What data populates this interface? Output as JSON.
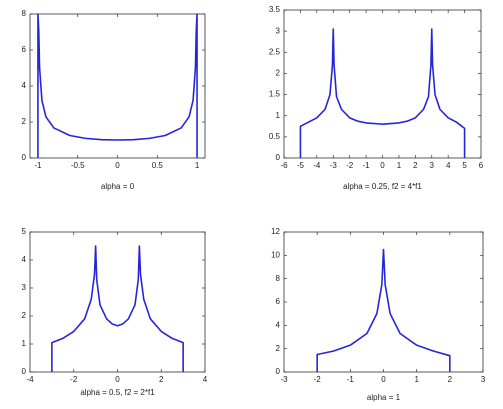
{
  "chart_data": [
    {
      "type": "line",
      "xlabel": "alpha = 0",
      "color": "#2626d9",
      "x": [
        -1,
        -1,
        -0.99,
        -0.98,
        -0.95,
        -0.9,
        -0.8,
        -0.6,
        -0.4,
        -0.2,
        0,
        0.2,
        0.4,
        0.6,
        0.8,
        0.9,
        0.95,
        0.98,
        0.99,
        1,
        1
      ],
      "values": [
        0,
        8,
        7.1,
        5.03,
        3.2,
        2.29,
        1.67,
        1.25,
        1.09,
        1.02,
        1,
        1.02,
        1.09,
        1.25,
        1.67,
        2.29,
        3.2,
        5.03,
        7.1,
        8,
        0
      ],
      "xlim": [
        -1.1,
        1.1
      ],
      "xticks": [
        -1,
        -0.5,
        0,
        0.5,
        1
      ],
      "ylim": [
        0,
        8
      ],
      "yticks": [
        0,
        2,
        4,
        6,
        8
      ]
    },
    {
      "type": "line",
      "xlabel": "alpha = 0.25, f2 = 4*f1",
      "color": "#2626d9",
      "x": [
        -5,
        -5,
        -4.5,
        -4,
        -3.5,
        -3.2,
        -3.05,
        -3,
        -2.95,
        -2.8,
        -2.5,
        -2,
        -1.5,
        -1,
        0,
        1,
        1.5,
        2,
        2.5,
        2.8,
        2.95,
        3,
        3.05,
        3.2,
        3.5,
        4,
        4.5,
        5,
        5
      ],
      "values": [
        0,
        0.75,
        0.85,
        0.95,
        1.15,
        1.5,
        2.2,
        3.05,
        2.2,
        1.45,
        1.15,
        0.95,
        0.87,
        0.83,
        0.8,
        0.83,
        0.87,
        0.95,
        1.15,
        1.45,
        2.2,
        3.05,
        2.2,
        1.5,
        1.15,
        0.95,
        0.85,
        0.7,
        0
      ],
      "xlim": [
        -6,
        6
      ],
      "xticks": [
        -6,
        -5,
        -4,
        -3,
        -2,
        -1,
        0,
        1,
        2,
        3,
        4,
        5,
        6
      ],
      "ylim": [
        0,
        3.5
      ],
      "yticks": [
        0,
        0.5,
        1,
        1.5,
        2,
        2.5,
        3,
        3.5
      ]
    },
    {
      "type": "line",
      "xlabel": "alpha = 0.5, f2 = 2*f1",
      "color": "#2626d9",
      "x": [
        -3,
        -3,
        -2.5,
        -2,
        -1.5,
        -1.2,
        -1.05,
        -1,
        -0.95,
        -0.8,
        -0.5,
        -0.25,
        0,
        0.25,
        0.5,
        0.8,
        0.95,
        1,
        1.05,
        1.2,
        1.5,
        2,
        2.5,
        3,
        3
      ],
      "values": [
        0,
        1.05,
        1.2,
        1.45,
        1.9,
        2.6,
        3.5,
        4.5,
        3.3,
        2.4,
        1.9,
        1.72,
        1.65,
        1.72,
        1.9,
        2.4,
        3.3,
        4.5,
        3.5,
        2.6,
        1.9,
        1.45,
        1.2,
        1.05,
        0
      ],
      "xlim": [
        -4,
        4
      ],
      "xticks": [
        -4,
        -2,
        0,
        2,
        4
      ],
      "ylim": [
        0,
        5
      ],
      "yticks": [
        0,
        1,
        2,
        3,
        4,
        5
      ]
    },
    {
      "type": "line",
      "xlabel": "alpha = 1",
      "color": "#2626d9",
      "x": [
        -2,
        -2,
        -1.5,
        -1,
        -0.5,
        -0.2,
        -0.05,
        0,
        0.05,
        0.2,
        0.5,
        1,
        1.5,
        2,
        2
      ],
      "values": [
        0,
        1.5,
        1.8,
        2.3,
        3.3,
        5,
        7.5,
        10.5,
        7.5,
        5,
        3.3,
        2.3,
        1.8,
        1.4,
        0
      ],
      "xlim": [
        -3,
        3
      ],
      "xticks": [
        -3,
        -2,
        -1,
        0,
        1,
        2,
        3
      ],
      "ylim": [
        0,
        12
      ],
      "yticks": [
        0,
        2,
        4,
        6,
        8,
        10,
        12
      ]
    }
  ]
}
